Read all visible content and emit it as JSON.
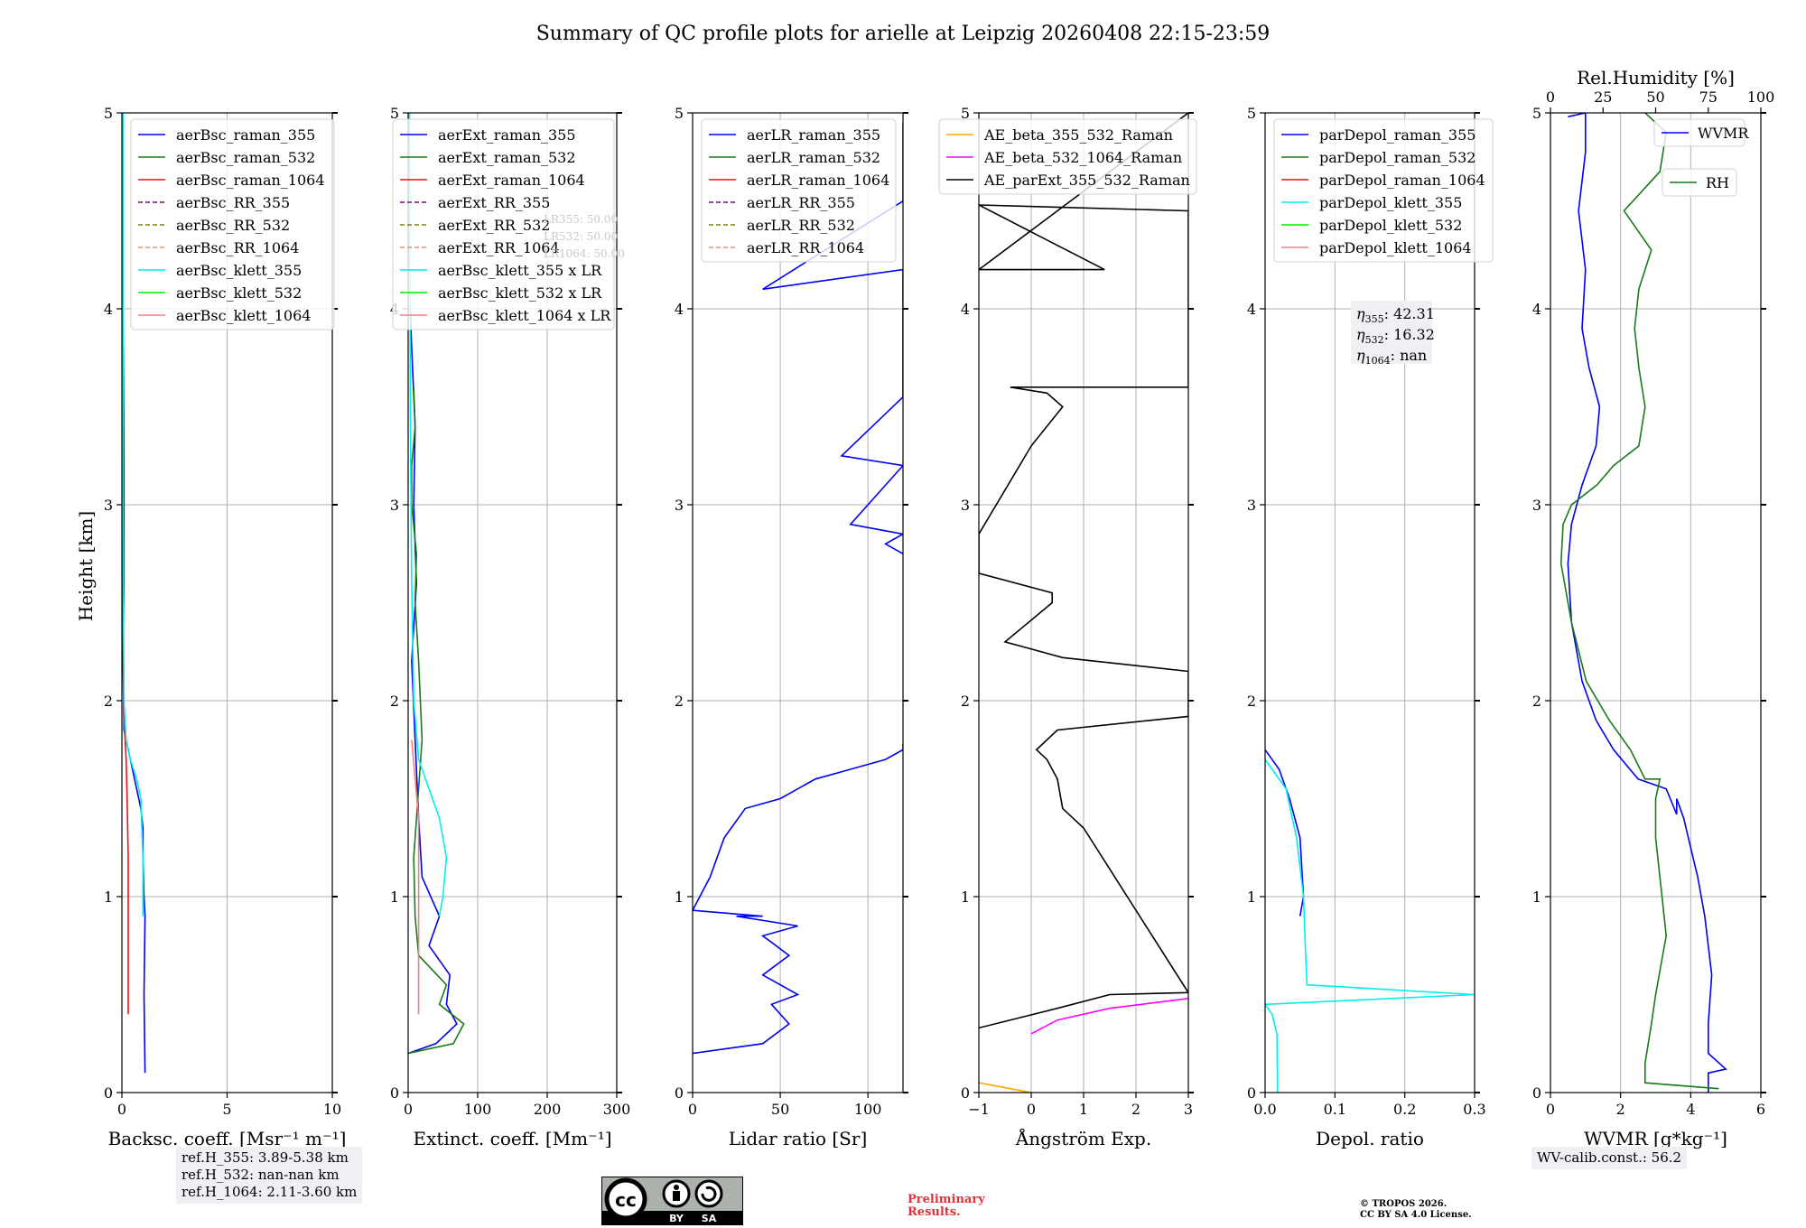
{
  "title": "Summary of QC profile plots for arielle at Leipzig 20260408 22:15-23:59",
  "colors": {
    "blue": "#0000ee",
    "green": "#1a7a1a",
    "red": "#ee1111",
    "purple": "#800080",
    "olive": "#808000",
    "salmon": "#fa8072",
    "cyan": "#00eeee",
    "lime": "#00ee00",
    "lightred": "#f08080",
    "orange": "#ffa500",
    "magenta": "#ff00ff",
    "black": "#000000"
  },
  "height_label": "Height [km]",
  "panels": [
    {
      "id": "bsc",
      "xlabel": "Backsc. coeff. [Msr⁻¹ m⁻¹]",
      "xlim": [
        0,
        10
      ],
      "ylim": [
        0,
        5
      ],
      "xticks": [
        "0",
        "5",
        "10"
      ],
      "xtick_values": [
        0,
        5,
        10
      ],
      "yticks": [
        "0",
        "1",
        "2",
        "3",
        "4",
        "5"
      ],
      "legend": [
        {
          "label": "aerBsc_raman_355",
          "color": "blue",
          "dash": false
        },
        {
          "label": "aerBsc_raman_532",
          "color": "green",
          "dash": false
        },
        {
          "label": "aerBsc_raman_1064",
          "color": "red",
          "dash": false
        },
        {
          "label": "aerBsc_RR_355",
          "color": "purple",
          "dash": true
        },
        {
          "label": "aerBsc_RR_532",
          "color": "olive",
          "dash": true
        },
        {
          "label": "aerBsc_RR_1064",
          "color": "salmon",
          "dash": true
        },
        {
          "label": "aerBsc_klett_355",
          "color": "cyan",
          "dash": false
        },
        {
          "label": "aerBsc_klett_532",
          "color": "lime",
          "dash": false
        },
        {
          "label": "aerBsc_klett_1064",
          "color": "lightred",
          "dash": false
        }
      ]
    },
    {
      "id": "ext",
      "xlabel": "Extinct. coeff. [Mm⁻¹]",
      "xlim": [
        0,
        300
      ],
      "ylim": [
        0,
        5
      ],
      "xticks": [
        "0",
        "100",
        "200",
        "300"
      ],
      "xtick_values": [
        0,
        100,
        200,
        300
      ],
      "yticks": [
        "0",
        "1",
        "2",
        "3",
        "4",
        "5"
      ],
      "legend": [
        {
          "label": "aerExt_raman_355",
          "color": "blue",
          "dash": false
        },
        {
          "label": "aerExt_raman_532",
          "color": "green",
          "dash": false
        },
        {
          "label": "aerExt_raman_1064",
          "color": "red",
          "dash": false
        },
        {
          "label": "aerExt_RR_355",
          "color": "purple",
          "dash": true
        },
        {
          "label": "aerExt_RR_532",
          "color": "olive",
          "dash": true
        },
        {
          "label": "aerExt_RR_1064",
          "color": "salmon",
          "dash": true
        },
        {
          "label": "aerBsc_klett_355 x LR",
          "color": "cyan",
          "dash": false
        },
        {
          "label": "aerBsc_klett_532 x LR",
          "color": "lime",
          "dash": false
        },
        {
          "label": "aerBsc_klett_1064 x LR",
          "color": "lightred",
          "dash": false
        }
      ],
      "hidden_labels": [
        "LR355: 50.00",
        "LR532: 50.00",
        "LR1064: 50.00"
      ]
    },
    {
      "id": "lr",
      "xlabel": "Lidar ratio [Sr]",
      "xlim": [
        0,
        120
      ],
      "ylim": [
        0,
        5
      ],
      "xticks": [
        "0",
        "50",
        "100"
      ],
      "xtick_values": [
        0,
        50,
        100
      ],
      "yticks": [
        "0",
        "1",
        "2",
        "3",
        "4",
        "5"
      ],
      "legend": [
        {
          "label": "aerLR_raman_355",
          "color": "blue",
          "dash": false
        },
        {
          "label": "aerLR_raman_532",
          "color": "green",
          "dash": false
        },
        {
          "label": "aerLR_raman_1064",
          "color": "red",
          "dash": false
        },
        {
          "label": "aerLR_RR_355",
          "color": "purple",
          "dash": true
        },
        {
          "label": "aerLR_RR_532",
          "color": "olive",
          "dash": true
        },
        {
          "label": "aerLR_RR_1064",
          "color": "salmon",
          "dash": true
        }
      ]
    },
    {
      "id": "ae",
      "xlabel": "Ångström Exp.",
      "xlim": [
        -1,
        3
      ],
      "ylim": [
        0,
        5
      ],
      "xticks": [
        "−1",
        "0",
        "1",
        "2",
        "3"
      ],
      "xtick_values": [
        -1,
        0,
        1,
        2,
        3
      ],
      "yticks": [
        "0",
        "1",
        "2",
        "3",
        "4",
        "5"
      ],
      "legend": [
        {
          "label": "AE_beta_355_532_Raman",
          "color": "orange",
          "dash": false
        },
        {
          "label": "AE_beta_532_1064_Raman",
          "color": "magenta",
          "dash": false
        },
        {
          "label": "AE_parExt_355_532_Raman",
          "color": "black",
          "dash": false
        }
      ]
    },
    {
      "id": "dep",
      "xlabel": "Depol. ratio",
      "xlim": [
        0,
        0.3
      ],
      "ylim": [
        0,
        5
      ],
      "xticks": [
        "0.0",
        "0.1",
        "0.2",
        "0.3"
      ],
      "xtick_values": [
        0,
        0.1,
        0.2,
        0.3
      ],
      "yticks": [
        "0",
        "1",
        "2",
        "3",
        "4",
        "5"
      ],
      "legend": [
        {
          "label": "parDepol_raman_355",
          "color": "blue",
          "dash": false
        },
        {
          "label": "parDepol_raman_532",
          "color": "green",
          "dash": false
        },
        {
          "label": "parDepol_raman_1064",
          "color": "red",
          "dash": false
        },
        {
          "label": "parDepol_klett_355",
          "color": "cyan",
          "dash": false
        },
        {
          "label": "parDepol_klett_532",
          "color": "lime",
          "dash": false
        },
        {
          "label": "parDepol_klett_1064",
          "color": "lightred",
          "dash": false
        }
      ],
      "eta": {
        "e355": "42.31",
        "e532": "16.32",
        "e1064": "nan"
      }
    },
    {
      "id": "wv",
      "xlabel": "WVMR [g*kg⁻¹]",
      "xlim": [
        0,
        6
      ],
      "ylim": [
        0,
        5
      ],
      "xticks": [
        "0",
        "2",
        "4",
        "6"
      ],
      "xtick_values": [
        0,
        2,
        4,
        6
      ],
      "yticks": [
        "0",
        "1",
        "2",
        "3",
        "4",
        "5"
      ],
      "top_label": "Rel.Humidity [%]",
      "top_xlim": [
        0,
        100
      ],
      "top_ticks": [
        "0",
        "25",
        "50",
        "75",
        "100"
      ],
      "top_tick_values": [
        0,
        25,
        50,
        75,
        100
      ],
      "legend_wvmr": "WVMR",
      "legend_rh": "RH"
    }
  ],
  "ref_heights": [
    "ref.H_355: 3.89-5.38 km",
    "ref.H_532: nan-nan km",
    "ref.H_1064: 2.11-3.60 km"
  ],
  "wv_calib": "WV-calib.const.: 56.2",
  "preliminary": "Preliminary Results.",
  "copyright_line1": "© TROPOS 2026.",
  "copyright_line2": "CC BY SA 4.0 License.",
  "cc_by": "BY",
  "cc_sa": "SA",
  "chart_data": [
    {
      "type": "line",
      "panel": "bsc",
      "title": "",
      "xlabel": "Backsc. coeff. [Msr⁻¹ m⁻¹]",
      "ylabel": "Height [km]",
      "xlim": [
        0,
        10
      ],
      "ylim": [
        0,
        5
      ],
      "series": [
        {
          "name": "aerBsc_raman_355",
          "color": "blue",
          "x": [
            1.1,
            1.05,
            1.1,
            1.05,
            1.0,
            1.0,
            0.9,
            0.7,
            0.5,
            0.3,
            0.1,
            0.05,
            0.1,
            0.1,
            0.05,
            0.0
          ],
          "y": [
            0.1,
            0.5,
            0.9,
            1.0,
            1.2,
            1.35,
            1.45,
            1.55,
            1.65,
            1.75,
            1.85,
            2.2,
            2.6,
            3.2,
            4.0,
            5.0
          ]
        },
        {
          "name": "aerBsc_raman_1064",
          "color": "red",
          "x": [
            0.3,
            0.3,
            0.3,
            0.25,
            0.2,
            0.1,
            0.05,
            0.0
          ],
          "y": [
            0.4,
            0.8,
            1.2,
            1.5,
            1.7,
            1.9,
            2.5,
            5.0
          ]
        },
        {
          "name": "aerBsc_klett_355",
          "color": "cyan",
          "x": [
            1.0,
            1.0,
            1.0,
            0.95,
            0.9,
            0.7,
            0.4,
            0.2,
            0.1,
            0.05,
            0.05
          ],
          "y": [
            0.9,
            1.0,
            1.2,
            1.35,
            1.5,
            1.6,
            1.7,
            1.8,
            2.0,
            3.0,
            5.0
          ]
        }
      ]
    },
    {
      "type": "line",
      "panel": "ext",
      "title": "",
      "xlabel": "Extinct. coeff. [Mm⁻¹]",
      "ylabel": "Height [km]",
      "xlim": [
        0,
        300
      ],
      "ylim": [
        0,
        5
      ],
      "series": [
        {
          "name": "aerExt_raman_355",
          "color": "blue",
          "x": [
            0,
            40,
            70,
            55,
            60,
            30,
            45,
            20,
            15,
            10,
            5,
            12,
            8,
            10,
            5,
            3
          ],
          "y": [
            0.2,
            0.25,
            0.35,
            0.45,
            0.6,
            0.75,
            0.9,
            1.1,
            1.4,
            1.8,
            2.2,
            2.6,
            3.0,
            3.4,
            3.8,
            4.0
          ]
        },
        {
          "name": "aerExt_raman_532",
          "color": "green",
          "x": [
            0,
            65,
            80,
            45,
            55,
            15,
            10,
            8,
            20,
            15,
            10,
            12,
            5,
            5,
            10,
            8
          ],
          "y": [
            0.2,
            0.25,
            0.35,
            0.45,
            0.55,
            0.7,
            0.9,
            1.2,
            1.8,
            2.2,
            2.5,
            2.75,
            3.0,
            3.2,
            3.4,
            3.6
          ]
        },
        {
          "name": "aerBsc_klett_355 x LR",
          "color": "cyan",
          "x": [
            45,
            50,
            55,
            45,
            30,
            15,
            8,
            5,
            3,
            2
          ],
          "y": [
            0.9,
            1.0,
            1.2,
            1.4,
            1.55,
            1.7,
            2.0,
            2.6,
            3.5,
            5.0
          ]
        },
        {
          "name": "aerBsc_klett_1064 x LR",
          "color": "lightred",
          "x": [
            15,
            15,
            15,
            15,
            10,
            5
          ],
          "y": [
            0.4,
            0.8,
            1.2,
            1.4,
            1.6,
            1.8
          ]
        }
      ]
    },
    {
      "type": "line",
      "panel": "lr",
      "title": "",
      "xlabel": "Lidar ratio [Sr]",
      "ylabel": "Height [km]",
      "xlim": [
        0,
        120
      ],
      "ylim": [
        0,
        5
      ],
      "series": [
        {
          "name": "aerLR_raman_355",
          "color": "blue",
          "x": [
            0,
            40,
            55,
            45,
            60,
            40,
            55,
            40,
            60,
            25,
            40,
            0,
            10,
            18,
            30,
            50,
            70,
            90,
            110,
            120,
            120
          ],
          "y": [
            0.2,
            0.25,
            0.35,
            0.45,
            0.5,
            0.6,
            0.7,
            0.8,
            0.85,
            0.9,
            0.9,
            0.93,
            1.1,
            1.3,
            1.45,
            1.5,
            1.6,
            1.65,
            1.7,
            1.75,
            1.78
          ]
        },
        {
          "name": "aerLR_raman_355 (upper spikes)",
          "color": "blue",
          "x": [
            120,
            110,
            120,
            90,
            120,
            85,
            120,
            120,
            120,
            40,
            120,
            120
          ],
          "y": [
            2.75,
            2.8,
            2.85,
            2.9,
            3.2,
            3.25,
            3.55,
            3.87,
            4.2,
            4.1,
            4.55,
            4.95
          ]
        }
      ]
    },
    {
      "type": "line",
      "panel": "ae",
      "title": "",
      "xlabel": "Ångström Exp.",
      "ylabel": "Height [km]",
      "xlim": [
        -1,
        3
      ],
      "ylim": [
        0,
        5
      ],
      "series": [
        {
          "name": "AE_beta_355_532_Raman",
          "color": "orange",
          "x": [
            -1,
            0
          ],
          "y": [
            0.05,
            0.0
          ]
        },
        {
          "name": "AE_beta_532_1064_Raman",
          "color": "magenta",
          "x": [
            0,
            0.5,
            1.5,
            3
          ],
          "y": [
            0.3,
            0.37,
            0.43,
            0.48
          ]
        },
        {
          "name": "AE_parExt_355_532_Raman",
          "color": "black",
          "x": [
            -1,
            0.5,
            1.5,
            3,
            1.0,
            0.6,
            0.5,
            0.3,
            0.1,
            0.5,
            3.0,
            3.0,
            0.6,
            -0.5,
            0.4,
            0.4,
            -1.0,
            -1.0,
            0.0,
            0.6,
            0.3,
            -0.4,
            0.1,
            3.0,
            3.0,
            3.0,
            -1.0,
            1.4,
            -1.0,
            3.0
          ],
          "y": [
            0.33,
            0.43,
            0.5,
            0.51,
            1.35,
            1.45,
            1.6,
            1.7,
            1.75,
            1.85,
            1.92,
            2.15,
            2.22,
            2.3,
            2.5,
            2.55,
            2.65,
            2.85,
            3.3,
            3.5,
            3.57,
            3.6,
            3.6,
            3.6,
            4.0,
            4.5,
            4.53,
            4.2,
            4.2,
            5.0
          ]
        }
      ]
    },
    {
      "type": "line",
      "panel": "dep",
      "title": "",
      "xlabel": "Depol. ratio",
      "ylabel": "Height [km]",
      "xlim": [
        0,
        0.3
      ],
      "ylim": [
        0,
        5
      ],
      "series": [
        {
          "name": "parDepol_raman_355",
          "color": "blue",
          "x": [
            0.05,
            0.055,
            0.05,
            0.035,
            0.02,
            0.0
          ],
          "y": [
            0.9,
            1.0,
            1.3,
            1.5,
            1.65,
            1.75
          ]
        },
        {
          "name": "parDepol_klett_355",
          "color": "cyan",
          "x": [
            0.018,
            0.017,
            0.01,
            0.0,
            0.3,
            0.06,
            0.058,
            0.055,
            0.045,
            0.03,
            0.0
          ],
          "y": [
            0.0,
            0.3,
            0.4,
            0.45,
            0.5,
            0.55,
            0.7,
            1.0,
            1.3,
            1.55,
            1.7
          ]
        }
      ]
    },
    {
      "type": "line",
      "panel": "wv",
      "title": "",
      "xlabel": "WVMR [g*kg⁻¹]",
      "ylabel": "Height [km]",
      "xlim": [
        0,
        6
      ],
      "ylim": [
        0,
        5
      ],
      "series": [
        {
          "name": "WVMR",
          "color": "blue",
          "x": [
            4.5,
            4.5,
            5.0,
            4.5,
            4.5,
            4.6,
            4.4,
            4.2,
            4.0,
            3.8,
            3.6,
            3.6,
            3.3,
            2.5,
            1.8,
            1.3,
            0.9,
            0.6,
            0.5,
            0.6,
            0.9,
            1.3,
            1.4,
            1.1,
            0.9,
            1.0,
            0.8,
            1.0,
            1.0,
            0.5
          ],
          "y": [
            0.0,
            0.1,
            0.12,
            0.2,
            0.35,
            0.6,
            0.9,
            1.1,
            1.25,
            1.4,
            1.5,
            1.42,
            1.55,
            1.6,
            1.75,
            1.9,
            2.1,
            2.4,
            2.7,
            2.9,
            3.1,
            3.3,
            3.5,
            3.7,
            3.9,
            4.2,
            4.5,
            4.8,
            5.0,
            4.98
          ]
        },
        {
          "name": "RH (top axis, %)",
          "color": "green",
          "x": [
            80,
            45,
            45,
            48,
            50,
            55,
            52,
            50,
            50,
            52,
            45,
            38,
            28,
            17,
            10,
            5,
            6,
            10,
            22,
            30,
            42,
            45,
            42,
            40,
            42,
            48,
            35,
            52,
            55,
            45
          ],
          "y": [
            0.02,
            0.05,
            0.15,
            0.35,
            0.5,
            0.8,
            1.1,
            1.3,
            1.5,
            1.6,
            1.6,
            1.75,
            1.9,
            2.1,
            2.4,
            2.7,
            2.9,
            3.0,
            3.1,
            3.2,
            3.3,
            3.5,
            3.7,
            3.9,
            4.1,
            4.3,
            4.5,
            4.7,
            4.9,
            5.0
          ]
        }
      ]
    }
  ]
}
